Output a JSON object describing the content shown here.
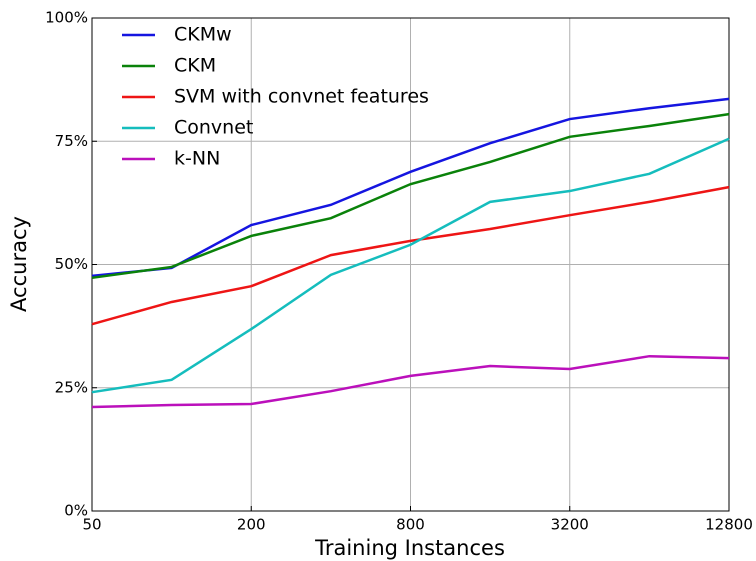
{
  "chart_data": {
    "type": "line",
    "x": [
      50,
      100,
      200,
      400,
      800,
      1600,
      3200,
      6400,
      12800
    ],
    "xlim": [
      50,
      12800
    ],
    "xticks": [
      50,
      200,
      800,
      3200,
      12800
    ],
    "xscale": "log",
    "ylim": [
      0,
      100
    ],
    "yticks": [
      {
        "value": 0,
        "label": "0%"
      },
      {
        "value": 25,
        "label": "25%"
      },
      {
        "value": 50,
        "label": "50%"
      },
      {
        "value": 75,
        "label": "75%"
      },
      {
        "value": 100,
        "label": "100%"
      }
    ],
    "xlabel": "Training Instances",
    "ylabel": "Accuracy",
    "grid": true,
    "legend": "upper left",
    "series": [
      {
        "name": "CKMw",
        "color": "#1515e0",
        "values": [
          47.7,
          49.3,
          58.0,
          62.1,
          68.8,
          74.6,
          79.5,
          81.7,
          83.6
        ]
      },
      {
        "name": "CKM",
        "color": "#0a820a",
        "values": [
          47.3,
          49.5,
          55.8,
          59.4,
          66.3,
          70.8,
          75.9,
          78.1,
          80.5
        ]
      },
      {
        "name": "SVM with convnet features",
        "color": "#ee1515",
        "values": [
          37.9,
          42.4,
          45.6,
          51.9,
          54.8,
          57.2,
          60.0,
          62.7,
          65.7
        ]
      },
      {
        "name": "Convnet",
        "color": "#15bdbd",
        "values": [
          24.1,
          26.6,
          36.9,
          47.9,
          54.0,
          62.7,
          64.9,
          68.4,
          75.5
        ]
      },
      {
        "name": "k-NN",
        "color": "#bb10bb",
        "values": [
          21.1,
          21.5,
          21.7,
          24.3,
          27.4,
          29.4,
          28.8,
          31.4,
          31.0
        ]
      }
    ]
  }
}
